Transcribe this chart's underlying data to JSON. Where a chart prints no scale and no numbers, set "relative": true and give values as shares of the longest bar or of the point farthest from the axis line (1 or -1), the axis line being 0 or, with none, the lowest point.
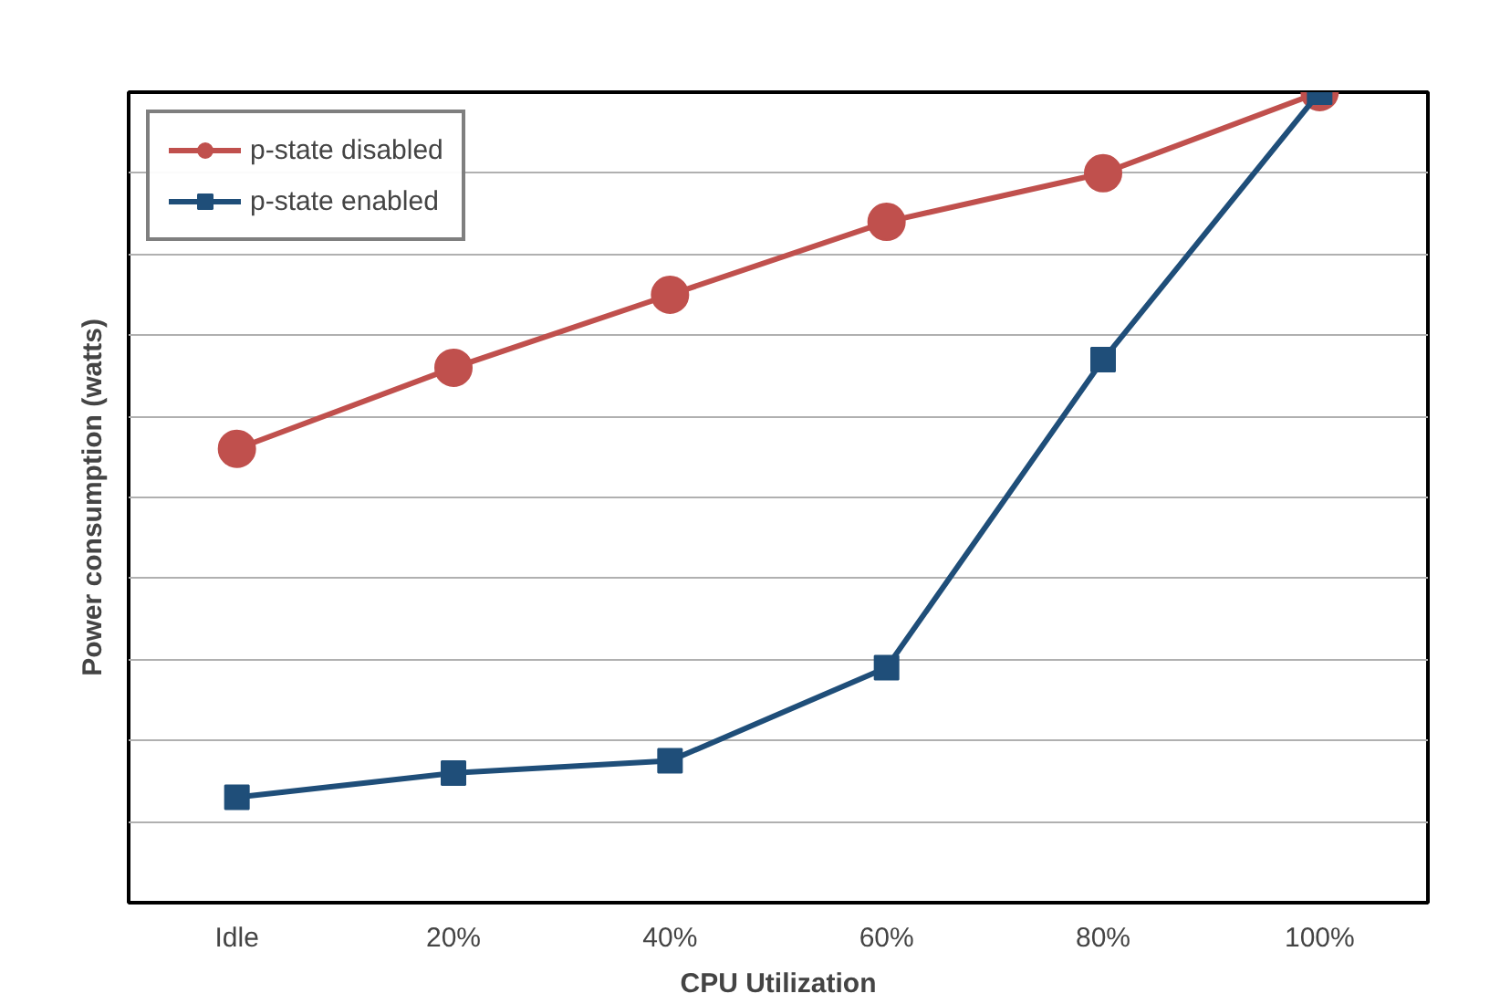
{
  "chart_data": {
    "type": "line",
    "relative": true,
    "xlabel": "CPU Utilization",
    "ylabel": "Power consumption (watts)",
    "categories": [
      "Idle",
      "20%",
      "40%",
      "60%",
      "80%",
      "100%"
    ],
    "series": [
      {
        "name": "p-state disabled",
        "color": "#c0504d",
        "marker": "circle",
        "values": [
          0.56,
          0.66,
          0.75,
          0.84,
          0.9,
          1.0
        ]
      },
      {
        "name": "p-state enabled",
        "color": "#1f4e79",
        "marker": "square",
        "values": [
          0.13,
          0.16,
          0.175,
          0.29,
          0.67,
          1.0
        ]
      }
    ],
    "grid": "y",
    "legend": "top left",
    "line_style": "solid"
  }
}
